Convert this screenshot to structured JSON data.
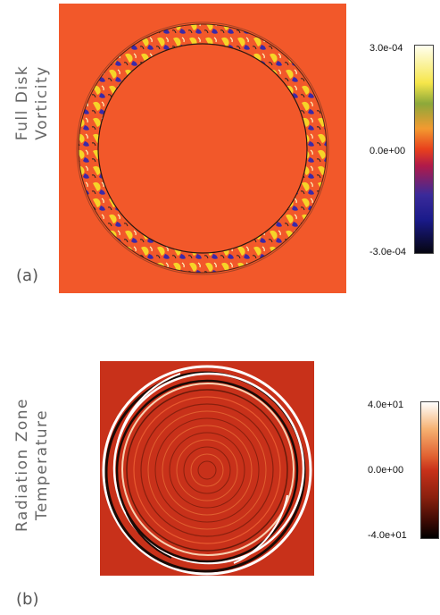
{
  "panels": [
    {
      "ylabel_lines": [
        "Full Disk",
        "Vorticity"
      ],
      "panel_label": "(a)",
      "colorbar": {
        "max": "3.0e-04",
        "mid": "0.0e+00",
        "min": "-3.0e-04"
      },
      "colors": {
        "background": "#f2582a",
        "positive": "#f6d428",
        "negative": "#3a2aa8"
      }
    },
    {
      "ylabel_lines": [
        "Radiation Zone",
        "Temperature"
      ],
      "panel_label": "(b)",
      "colorbar": {
        "max": "4.0e+01",
        "mid": "0.0e+00",
        "min": "-4.0e+01"
      },
      "colors": {
        "background": "#c8311a",
        "ring_light": "#ffffff",
        "ring_dark": "#1a0a06"
      }
    }
  ]
}
